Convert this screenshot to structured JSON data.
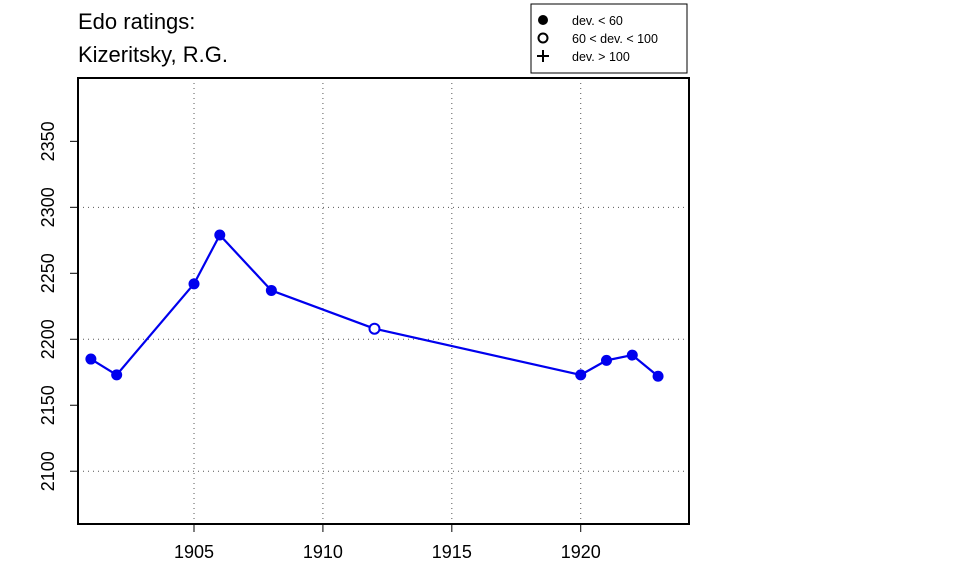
{
  "chart_data": {
    "type": "line",
    "title_lines": [
      "Edo ratings:",
      "Kizeritsky, R.G."
    ],
    "xlabel": "",
    "ylabel": "",
    "xlim": [
      1900.5,
      1924.2
    ],
    "ylim": [
      2060,
      2398
    ],
    "x_ticks": [
      1905,
      1910,
      1915,
      1920
    ],
    "y_ticks": [
      2100,
      2150,
      2200,
      2250,
      2300,
      2350
    ],
    "x_grid": [
      1905,
      1910,
      1915,
      1920
    ],
    "y_grid": [
      2100,
      2200,
      2300
    ],
    "grid": "dotted",
    "series_color": "#0000ee",
    "points": [
      {
        "x": 1901,
        "y": 2185,
        "marker": "filled"
      },
      {
        "x": 1902,
        "y": 2173,
        "marker": "filled"
      },
      {
        "x": 1905,
        "y": 2242,
        "marker": "filled"
      },
      {
        "x": 1906,
        "y": 2279,
        "marker": "filled"
      },
      {
        "x": 1908,
        "y": 2237,
        "marker": "filled"
      },
      {
        "x": 1912,
        "y": 2208,
        "marker": "open"
      },
      {
        "x": 1920,
        "y": 2173,
        "marker": "filled"
      },
      {
        "x": 1921,
        "y": 2184,
        "marker": "filled"
      },
      {
        "x": 1922,
        "y": 2188,
        "marker": "filled"
      },
      {
        "x": 1923,
        "y": 2172,
        "marker": "filled"
      }
    ],
    "legend": {
      "position": "top-right",
      "entries": [
        {
          "symbol": "filled-circle",
          "label": "dev. < 60"
        },
        {
          "symbol": "open-circle",
          "label": "60 < dev. < 100"
        },
        {
          "symbol": "plus",
          "label": "dev. > 100"
        }
      ]
    }
  }
}
